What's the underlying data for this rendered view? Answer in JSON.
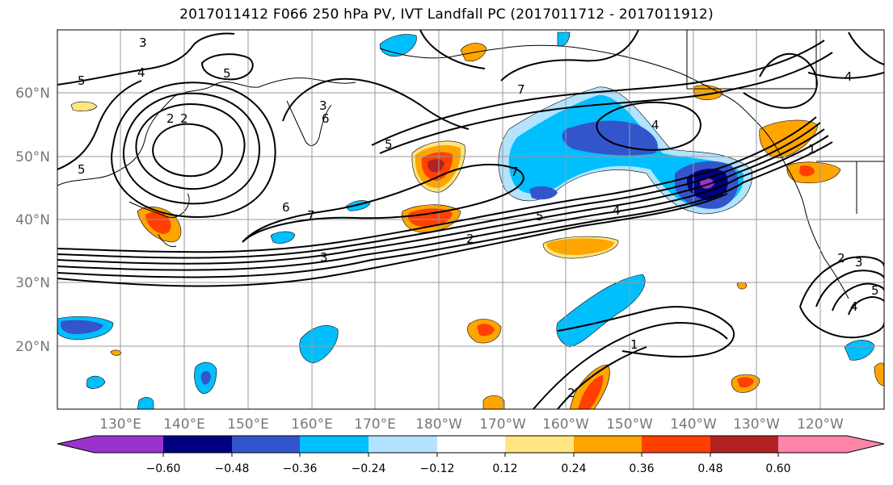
{
  "title": "2017011412 F066 250 hPa PV, IVT Landfall PC (2017011712 - 2017011912)",
  "map": {
    "lat_labels": [
      "60°N",
      "50°N",
      "40°N",
      "30°N",
      "20°N"
    ],
    "lon_labels": [
      "130°E",
      "140°E",
      "150°E",
      "160°E",
      "170°E",
      "180°W",
      "170°W",
      "160°W",
      "150°W",
      "140°W",
      "130°W",
      "120°W"
    ],
    "lat_range": [
      10,
      70
    ],
    "lon_range": [
      120,
      250
    ],
    "grid": true,
    "contour_labels": [
      "3",
      "4",
      "5",
      "5",
      "2",
      "2",
      "3",
      "6",
      "5",
      "6",
      "7",
      "7",
      "7",
      "5",
      "4",
      "4",
      "2",
      "3",
      "1",
      "1",
      "2",
      "2",
      "3",
      "4",
      "5",
      "5",
      "4"
    ]
  },
  "colorbar": {
    "tick_labels": [
      "−0.60",
      "−0.48",
      "−0.36",
      "−0.24",
      "−0.12",
      "0.12",
      "0.24",
      "0.36",
      "0.48",
      "0.60"
    ],
    "colors": [
      "#9933cc",
      "#000080",
      "#3355cc",
      "#00bfff",
      "#b3e3ff",
      "#ffffff",
      "#ffe680",
      "#ffa500",
      "#ff4000",
      "#b22222",
      "#ff85a8"
    ]
  },
  "colors": {
    "blue_strong": "#000080",
    "blue_mid": "#3355cc",
    "blue_light": "#00bfff",
    "blue_pale": "#b3e3ff",
    "orange_light": "#ffe680",
    "orange": "#ffa500",
    "orange_red": "#ff4000",
    "dark_red": "#b22222",
    "purple": "#9933cc"
  }
}
